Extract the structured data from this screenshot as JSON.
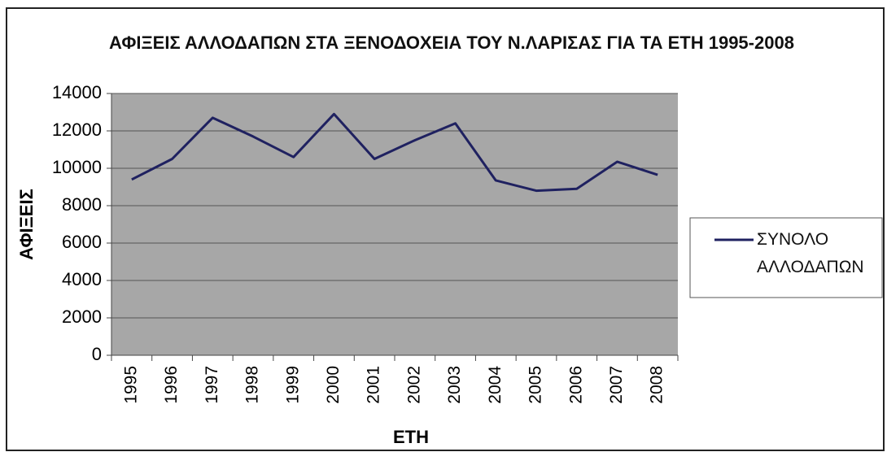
{
  "chart_data": {
    "type": "line",
    "title": "ΑΦΙΞΕΙΣ ΑΛΛΟΔΑΠΩΝ ΣΤΑ ΞΕΝΟΔΟΧΕΙΑ ΤΟΥ Ν.ΛΑΡΙΣΑΣ ΓΙΑ ΤΑ ΕΤΗ 1995-2008",
    "x_label": "ΕΤΗ",
    "y_label": "ΑΦΙΞΕΙΣ",
    "categories": [
      "1995",
      "1996",
      "1997",
      "1998",
      "1999",
      "2000",
      "2001",
      "2002",
      "2003",
      "2004",
      "2005",
      "2006",
      "2007",
      "2008"
    ],
    "series": [
      {
        "name": "ΣΥΝΟΛΟ ΑΛΛΟΔΑΠΩΝ",
        "color": "#1f2160",
        "values": [
          9400,
          10500,
          12700,
          11700,
          10600,
          12900,
          10500,
          11500,
          12400,
          9350,
          8800,
          8900,
          10350,
          9650
        ]
      }
    ],
    "ylim": [
      0,
      14000
    ],
    "yticks": [
      0,
      2000,
      4000,
      6000,
      8000,
      10000,
      12000,
      14000
    ],
    "grid": true,
    "legend": "right"
  }
}
